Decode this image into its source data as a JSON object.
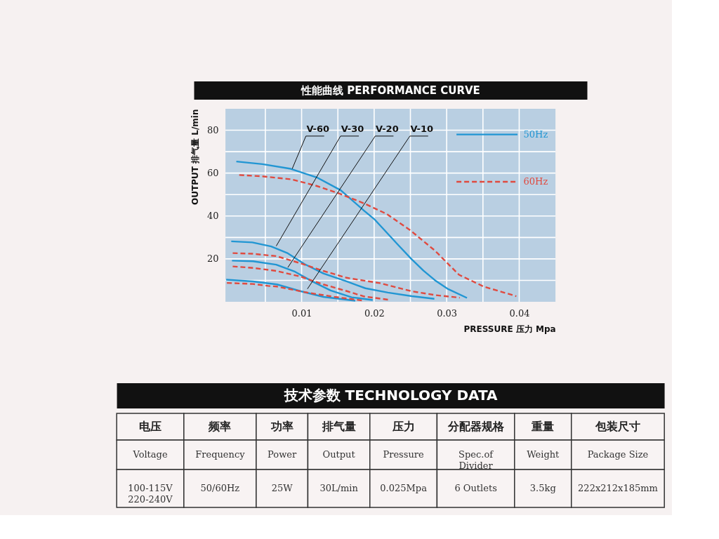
{
  "chart_data": [
    {
      "type": "line",
      "title": "性能曲线 PERFORMANCE CURVE",
      "xlabel": "PRESSURE 压力 Mpa",
      "ylabel": "OUTPUT 排气量 L/min",
      "xlim": [
        -0.0005,
        0.045
      ],
      "ylim": [
        0,
        90
      ],
      "xticks": [
        {
          "value": 0.005,
          "label": null
        },
        0.01,
        {
          "value": 0.015,
          "label": null
        },
        0.02,
        {
          "value": 0.025,
          "label": null
        },
        0.03,
        {
          "value": 0.035,
          "label": null
        },
        0.04
      ],
      "yticks": [
        {
          "value": 10,
          "label": null
        },
        20,
        {
          "value": 30,
          "label": null
        },
        40,
        {
          "value": 50,
          "label": null
        },
        60,
        {
          "value": 70,
          "label": null
        },
        80
      ],
      "grid": true,
      "legend": "top right",
      "series": [
        {
          "name": "50Hz",
          "color": "#2196d3",
          "line_style": "solid",
          "x": [
            0.001,
            0.0046,
            0.0085,
            0.0121,
            0.0154,
            0.0186,
            0.02,
            0.0217,
            0.0234,
            0.0251,
            0.0268,
            0.0284,
            0.0301,
            0.0328
          ],
          "values": [
            65.4,
            64.2,
            62.0,
            58.0,
            52.0,
            42.5,
            38.6,
            32.4,
            26.2,
            20.1,
            14.5,
            10.0,
            6.1,
            1.8
          ]
        },
        {
          "name": "60Hz",
          "color": "#e04a3f",
          "line_style": "dashed",
          "x": [
            0.0014,
            0.0046,
            0.0086,
            0.0121,
            0.0154,
            0.0186,
            0.0217,
            0.025,
            0.0284,
            0.0317,
            0.0351,
            0.0396
          ],
          "values": [
            59.1,
            58.5,
            57.1,
            54.0,
            50.2,
            45.9,
            41.0,
            33.3,
            23.8,
            12.6,
            7.1,
            2.6
          ]
        },
        {
          "color": "#2196d3",
          "line_style": "solid",
          "x": [
            0.0003,
            0.0032,
            0.0058,
            0.0081,
            0.0104,
            0.013,
            0.0162,
            0.0188,
            0.0219,
            0.0252,
            0.0283
          ],
          "values": [
            28.2,
            27.7,
            25.8,
            22.6,
            17.6,
            13.2,
            9.5,
            6.3,
            4.3,
            2.6,
            1.4
          ]
        },
        {
          "color": "#e04a3f",
          "line_style": "dashed",
          "x": [
            0.0005,
            0.0032,
            0.0065,
            0.0097,
            0.013,
            0.0162,
            0.0208,
            0.0252,
            0.0285,
            0.0318
          ],
          "values": [
            22.7,
            22.4,
            21.3,
            18.1,
            14.4,
            11.2,
            8.7,
            4.9,
            3.1,
            1.9
          ]
        },
        {
          "color": "#2196d3",
          "line_style": "solid",
          "x": [
            0.0004,
            0.0033,
            0.0065,
            0.0091,
            0.0114,
            0.014,
            0.0169,
            0.0198
          ],
          "values": [
            19.2,
            18.9,
            17.3,
            14.0,
            9.6,
            5.3,
            2.1,
            0.8
          ]
        },
        {
          "color": "#e04a3f",
          "line_style": "dashed",
          "x": [
            0.0005,
            0.0033,
            0.0065,
            0.0098,
            0.013,
            0.0163,
            0.0186,
            0.0219
          ],
          "values": [
            16.5,
            15.8,
            14.4,
            11.8,
            8.1,
            4.9,
            2.5,
            1.0
          ]
        },
        {
          "color": "#2196d3",
          "line_style": "solid",
          "x": [
            -0.0004,
            0.0033,
            0.0066,
            0.0098,
            0.013,
            0.0174
          ],
          "values": [
            10.3,
            9.5,
            8.1,
            5.0,
            2.3,
            0.5
          ]
        },
        {
          "color": "#e04a3f",
          "line_style": "dashed",
          "x": [
            -0.0003,
            0.0033,
            0.0054,
            0.0066,
            0.0106,
            0.0145,
            0.0184
          ],
          "values": [
            8.8,
            8.3,
            7.4,
            7.1,
            4.4,
            2.3,
            0.6
          ]
        }
      ],
      "annotations": [
        {
          "text": "V-60",
          "x": 0.0087,
          "y": 62
        },
        {
          "text": "V-30",
          "x": 0.0065,
          "y": 26
        },
        {
          "text": "V-20",
          "x": 0.0081,
          "y": 16
        },
        {
          "text": "V-10",
          "x": 0.0108,
          "y": 6
        }
      ]
    },
    {
      "type": "other",
      "title": "技术参数 TECHNOLOGY DATA",
      "categories": [
        "电压",
        "频率",
        "功率",
        "排气量",
        "压力",
        "分配器规格",
        "重量",
        "包装尺寸"
      ],
      "annotations": [
        "Voltage",
        "Frequency",
        "Power",
        "Output",
        "Pressure",
        "Spec.of\nDivider",
        "Weight",
        "Package Size",
        "100-115V\n220-240V",
        "50/60Hz",
        "25W",
        "30L/min",
        "0.025Mpa",
        "6 Outlets",
        "3.5kg",
        "222x212x185mm"
      ]
    }
  ]
}
